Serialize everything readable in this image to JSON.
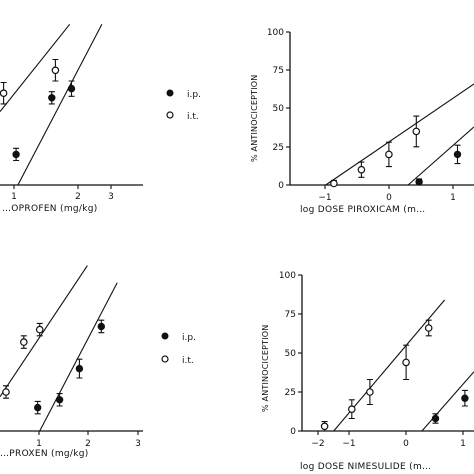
{
  "chart_data": [
    {
      "type": "scatter",
      "xlabel": "…OPROFEN (mg/kg)",
      "ylabel": "",
      "xticks": [
        "1",
        "2",
        "3"
      ],
      "yticks": [],
      "xlim": [
        0,
        4
      ],
      "ylim": [
        0,
        100
      ],
      "series": [
        {
          "name": "i.p.",
          "marker": "filled",
          "points": [
            [
              0.45,
              20,
              4
            ],
            [
              1.45,
              57,
              4
            ],
            [
              2.0,
              63,
              5
            ]
          ],
          "fit": [
            [
              0.5,
              0
            ],
            [
              2.85,
              105
            ]
          ]
        },
        {
          "name": "i.t.",
          "marker": "open",
          "points": [
            [
              0.1,
              60,
              7
            ],
            [
              1.55,
              75,
              7
            ]
          ],
          "fit": [
            [
              0.0,
              48
            ],
            [
              1.95,
              105
            ]
          ]
        }
      ]
    },
    {
      "type": "scatter",
      "xlabel": "log DOSE PIROXICAM (m…",
      "ylabel": "% ANTINOCICEPTION",
      "xticks": [
        "−1",
        "0",
        "1"
      ],
      "yticks": [
        "0",
        "25",
        "50",
        "75",
        "100"
      ],
      "xlim": [
        -1.8,
        1.55
      ],
      "ylim": [
        0,
        100
      ],
      "series": [
        {
          "name": "i.p.",
          "marker": "filled",
          "points": [
            [
              0.55,
              2,
              2
            ],
            [
              1.25,
              20,
              6
            ]
          ],
          "fit": [
            [
              0.35,
              0
            ],
            [
              1.55,
              38
            ]
          ]
        },
        {
          "name": "i.t.",
          "marker": "open",
          "points": [
            [
              -1.0,
              1,
              2
            ],
            [
              -0.5,
              10,
              5
            ],
            [
              0.0,
              20,
              8
            ],
            [
              0.5,
              35,
              10
            ]
          ],
          "fit": [
            [
              -1.15,
              0
            ],
            [
              1.55,
              66
            ]
          ]
        }
      ]
    },
    {
      "type": "scatter",
      "xlabel": "…PROXEN (mg/kg)",
      "ylabel": "",
      "xticks": [
        "1",
        "2",
        "3"
      ],
      "yticks": [],
      "xlim": [
        0,
        3.6
      ],
      "ylim": [
        0,
        100
      ],
      "series": [
        {
          "name": "i.p.",
          "marker": "filled",
          "points": [
            [
              0.95,
              15,
              4
            ],
            [
              1.5,
              20,
              4
            ],
            [
              2.0,
              40,
              6
            ],
            [
              2.55,
              67,
              4
            ]
          ],
          "fit": [
            [
              1.0,
              0
            ],
            [
              2.95,
              95
            ]
          ]
        },
        {
          "name": "i.t.",
          "marker": "open",
          "points": [
            [
              0.15,
              25,
              4
            ],
            [
              0.6,
              57,
              4
            ],
            [
              1.0,
              65,
              4
            ]
          ],
          "fit": [
            [
              0.0,
              22
            ],
            [
              2.2,
              106
            ]
          ]
        }
      ]
    },
    {
      "type": "scatter",
      "xlabel": "log DOSE NIMESULIDE (m…",
      "ylabel": "% ANTINOCICEPTION",
      "xticks": [
        "−2",
        "−1",
        "0",
        "1"
      ],
      "yticks": [
        "0",
        "25",
        "50",
        "75",
        "100"
      ],
      "xlim": [
        -2.3,
        1.5
      ],
      "ylim": [
        0,
        100
      ],
      "series": [
        {
          "name": "i.p.",
          "marker": "filled",
          "points": [
            [
              0.65,
              8,
              3
            ],
            [
              1.3,
              21,
              5
            ]
          ],
          "fit": [
            [
              0.35,
              0
            ],
            [
              1.5,
              38
            ]
          ]
        },
        {
          "name": "i.t.",
          "marker": "open",
          "points": [
            [
              -1.8,
              3,
              3
            ],
            [
              -1.2,
              14,
              6
            ],
            [
              -0.8,
              25,
              8
            ],
            [
              0.0,
              44,
              11
            ],
            [
              0.5,
              66,
              5
            ]
          ],
          "fit": [
            [
              -1.6,
              0
            ],
            [
              0.85,
              84
            ]
          ]
        }
      ]
    }
  ],
  "legends": [
    {
      "ip_label": "i.p.",
      "it_label": "i.t."
    },
    {
      "ip_label": "i.p.",
      "it_label": "i.t."
    }
  ]
}
